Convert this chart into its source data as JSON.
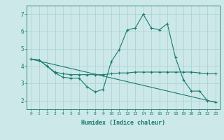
{
  "x_ticks": [
    0,
    1,
    2,
    3,
    4,
    5,
    6,
    7,
    8,
    9,
    10,
    11,
    12,
    13,
    14,
    15,
    16,
    17,
    18,
    19,
    20,
    21,
    22,
    23
  ],
  "series": [
    {
      "x": [
        0,
        1,
        2,
        3,
        4,
        5,
        6,
        7,
        8,
        9,
        10,
        11,
        12,
        13,
        14,
        15,
        16,
        17,
        18,
        19,
        20,
        21,
        22,
        23
      ],
      "y": [
        4.4,
        4.35,
        4.0,
        3.6,
        3.35,
        3.3,
        3.3,
        2.8,
        2.5,
        2.65,
        4.25,
        4.95,
        6.1,
        6.2,
        7.0,
        6.2,
        6.1,
        6.45,
        4.5,
        3.2,
        2.55,
        2.55,
        2.0,
        1.9
      ]
    },
    {
      "x": [
        0,
        1,
        2,
        3,
        4,
        5,
        6,
        7,
        8,
        9,
        10,
        11,
        12,
        13,
        14,
        15,
        16,
        17,
        18,
        19,
        20,
        21,
        22,
        23
      ],
      "y": [
        4.4,
        4.35,
        4.0,
        3.65,
        3.55,
        3.5,
        3.5,
        3.5,
        3.5,
        3.5,
        3.55,
        3.6,
        3.6,
        3.65,
        3.65,
        3.65,
        3.65,
        3.65,
        3.65,
        3.65,
        3.65,
        3.6,
        3.55,
        3.55
      ]
    },
    {
      "x": [
        0,
        23
      ],
      "y": [
        4.4,
        1.9
      ]
    }
  ],
  "color": "#1a7a6e",
  "background_color": "#cce8e8",
  "grid_color": "#aacfcf",
  "xlabel": "Humidex (Indice chaleur)",
  "xlim": [
    -0.5,
    23.5
  ],
  "ylim": [
    1.5,
    7.5
  ],
  "yticks": [
    2,
    3,
    4,
    5,
    6,
    7
  ],
  "figsize": [
    3.2,
    2.0
  ],
  "dpi": 100
}
